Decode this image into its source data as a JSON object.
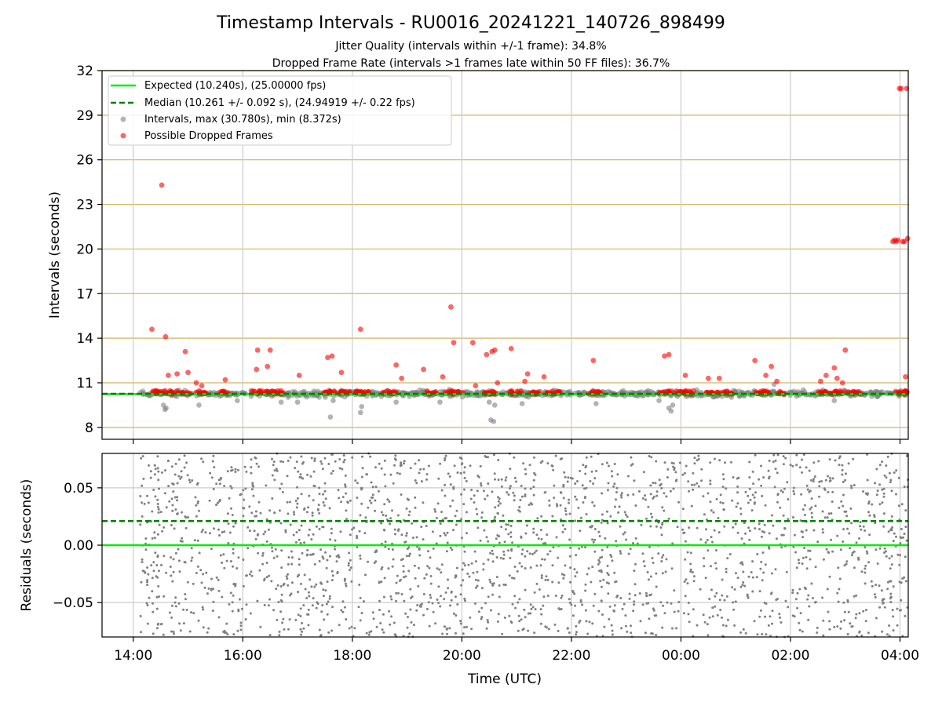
{
  "figure": {
    "title": "Timestamp Intervals - RU0016_20241221_140726_898499",
    "subtitle_1": "Jitter Quality (intervals within +/-1 frame): 34.8%",
    "subtitle_2": "Dropped Frame Rate (intervals >1 frames late within 50 FF files): 36.7%",
    "xlabel": "Time (UTC)"
  },
  "colors": {
    "expected": "#00ee00",
    "median": "#008000",
    "intervals": "#808080",
    "dropped": "#ff0000",
    "hgrid_top": "#d2b464",
    "grid": "#cccccc"
  },
  "chart_data": [
    {
      "type": "scatter",
      "panel": "intervals",
      "ylabel": "Intervals (seconds)",
      "x_unit": "hours since 00:00 UTC on 2024-12-21 (values above 24 fall on 2024-12-22)",
      "xlim": [
        13.43,
        28.15
      ],
      "ylim": [
        7.2,
        32
      ],
      "yticks": [
        8,
        11,
        14,
        17,
        20,
        23,
        26,
        29,
        32
      ],
      "grid": true,
      "legend_position": "top-left",
      "legend": [
        {
          "label": "Expected (10.240s), (25.00000 fps)",
          "kind": "line-solid",
          "color": "#00ee00"
        },
        {
          "label": "Median (10.261 +/- 0.092 s), (24.94919 +/- 0.22 fps)",
          "kind": "line-dashed",
          "color": "#008000"
        },
        {
          "label": "Intervals, max (30.780s), min (8.372s)",
          "kind": "marker",
          "color": "#808080"
        },
        {
          "label": "Possible Dropped Frames",
          "kind": "marker",
          "color": "#ff0000"
        }
      ],
      "reference_lines": [
        {
          "name": "Expected",
          "y": 10.24,
          "style": "solid",
          "color": "#00ee00"
        },
        {
          "name": "Median",
          "y": 10.261,
          "style": "dashed",
          "color": "#008000"
        }
      ],
      "series": [
        {
          "name": "Intervals, max (30.780s), min (8.372s)",
          "color": "#808080",
          "description_points": "baseline of points near 10.26 s across 14.12–28.15 h with low outliers",
          "points": [
            [
              14.55,
              9.5
            ],
            [
              14.58,
              9.2
            ],
            [
              14.6,
              9.3
            ],
            [
              15.2,
              9.5
            ],
            [
              15.9,
              9.8
            ],
            [
              16.7,
              9.7
            ],
            [
              17.0,
              9.7
            ],
            [
              17.6,
              8.7
            ],
            [
              17.65,
              9.8
            ],
            [
              18.15,
              9.0
            ],
            [
              18.17,
              9.4
            ],
            [
              18.8,
              9.7
            ],
            [
              19.6,
              9.7
            ],
            [
              20.5,
              9.7
            ],
            [
              20.53,
              8.5
            ],
            [
              20.58,
              8.4
            ],
            [
              20.6,
              9.5
            ],
            [
              21.1,
              9.6
            ],
            [
              22.45,
              9.6
            ],
            [
              23.6,
              9.8
            ],
            [
              23.78,
              9.3
            ],
            [
              23.82,
              9.1
            ],
            [
              23.85,
              9.5
            ],
            [
              25.7,
              10.9
            ],
            [
              26.8,
              9.8
            ]
          ]
        },
        {
          "name": "Possible Dropped Frames",
          "color": "#ff0000",
          "points": [
            [
              14.34,
              14.6
            ],
            [
              14.52,
              24.3
            ],
            [
              14.59,
              14.1
            ],
            [
              14.64,
              11.5
            ],
            [
              14.8,
              11.6
            ],
            [
              14.95,
              13.1
            ],
            [
              15.0,
              11.7
            ],
            [
              15.15,
              11.0
            ],
            [
              15.25,
              10.8
            ],
            [
              15.68,
              11.2
            ],
            [
              16.25,
              11.9
            ],
            [
              16.27,
              13.2
            ],
            [
              16.45,
              12.1
            ],
            [
              16.5,
              13.2
            ],
            [
              17.03,
              11.5
            ],
            [
              17.55,
              12.7
            ],
            [
              17.63,
              12.8
            ],
            [
              17.8,
              11.7
            ],
            [
              18.15,
              14.6
            ],
            [
              18.8,
              12.2
            ],
            [
              18.9,
              11.3
            ],
            [
              19.3,
              11.9
            ],
            [
              19.65,
              11.4
            ],
            [
              19.8,
              16.1
            ],
            [
              19.85,
              13.7
            ],
            [
              20.2,
              13.7
            ],
            [
              20.25,
              10.8
            ],
            [
              20.45,
              12.9
            ],
            [
              20.55,
              13.1
            ],
            [
              20.6,
              13.2
            ],
            [
              20.65,
              11.0
            ],
            [
              20.9,
              13.3
            ],
            [
              21.15,
              11.1
            ],
            [
              21.2,
              11.6
            ],
            [
              21.5,
              11.4
            ],
            [
              22.4,
              12.5
            ],
            [
              23.7,
              12.8
            ],
            [
              23.78,
              12.9
            ],
            [
              24.08,
              11.5
            ],
            [
              24.5,
              11.3
            ],
            [
              24.7,
              11.3
            ],
            [
              25.35,
              12.5
            ],
            [
              25.55,
              11.5
            ],
            [
              25.65,
              12.1
            ],
            [
              25.75,
              11.1
            ],
            [
              26.55,
              11.1
            ],
            [
              26.65,
              11.5
            ],
            [
              26.8,
              12.0
            ],
            [
              26.85,
              11.3
            ],
            [
              26.95,
              11.0
            ],
            [
              27.0,
              13.2
            ],
            [
              27.87,
              20.5
            ],
            [
              27.9,
              20.6
            ],
            [
              27.93,
              20.5
            ],
            [
              27.96,
              20.6
            ],
            [
              27.99,
              30.8
            ],
            [
              28.02,
              30.8
            ],
            [
              28.05,
              20.5
            ],
            [
              28.08,
              20.5
            ],
            [
              28.1,
              11.4
            ],
            [
              28.12,
              30.8
            ],
            [
              28.14,
              20.7
            ]
          ],
          "cluster_ranges": [
            [
              14.32,
              15.05
            ],
            [
              15.15,
              15.35
            ],
            [
              15.55,
              15.75
            ],
            [
              16.15,
              16.75
            ],
            [
              17.45,
              17.7
            ],
            [
              17.75,
              18.3
            ],
            [
              18.55,
              18.8
            ],
            [
              19.35,
              19.55
            ],
            [
              19.7,
              20.05
            ],
            [
              20.4,
              20.7
            ],
            [
              20.85,
              21.1
            ],
            [
              21.25,
              21.45
            ],
            [
              21.55,
              21.8
            ],
            [
              22.3,
              22.55
            ],
            [
              23.6,
              23.7
            ],
            [
              23.75,
              24.25
            ],
            [
              24.45,
              24.95
            ],
            [
              25.35,
              25.7
            ],
            [
              25.75,
              25.9
            ],
            [
              26.5,
              27.0
            ],
            [
              27.05,
              27.3
            ],
            [
              27.85,
              28.15
            ]
          ],
          "cluster_value": 10.35
        }
      ]
    },
    {
      "type": "scatter",
      "panel": "residuals",
      "ylabel": "Residuals (seconds)",
      "xlim": [
        13.43,
        28.15
      ],
      "ylim": [
        -0.08,
        0.08
      ],
      "yticks": [
        0.05,
        0.0,
        -0.05
      ],
      "ytick_labels": [
        "0.05",
        "0.00",
        "−0.05"
      ],
      "grid": true,
      "reference_lines": [
        {
          "name": "Expected",
          "y": 0.0,
          "style": "solid",
          "color": "#00ee00"
        },
        {
          "name": "Median",
          "y": 0.021,
          "style": "dashed",
          "color": "#008000"
        }
      ],
      "series": [
        {
          "name": "Residuals",
          "color": "#808080",
          "description_points": "dense uniform scatter of residuals between -0.08 and 0.08 across 14.12–28.15 h",
          "x_range": [
            14.12,
            28.15
          ],
          "y_range": [
            -0.08,
            0.08
          ],
          "count": 2200
        }
      ]
    }
  ],
  "xaxis": {
    "ticks": [
      14,
      16,
      18,
      20,
      22,
      24,
      26,
      28
    ],
    "tick_labels": [
      "14:00",
      "16:00",
      "18:00",
      "20:00",
      "22:00",
      "00:00",
      "02:00",
      "04:00"
    ]
  }
}
